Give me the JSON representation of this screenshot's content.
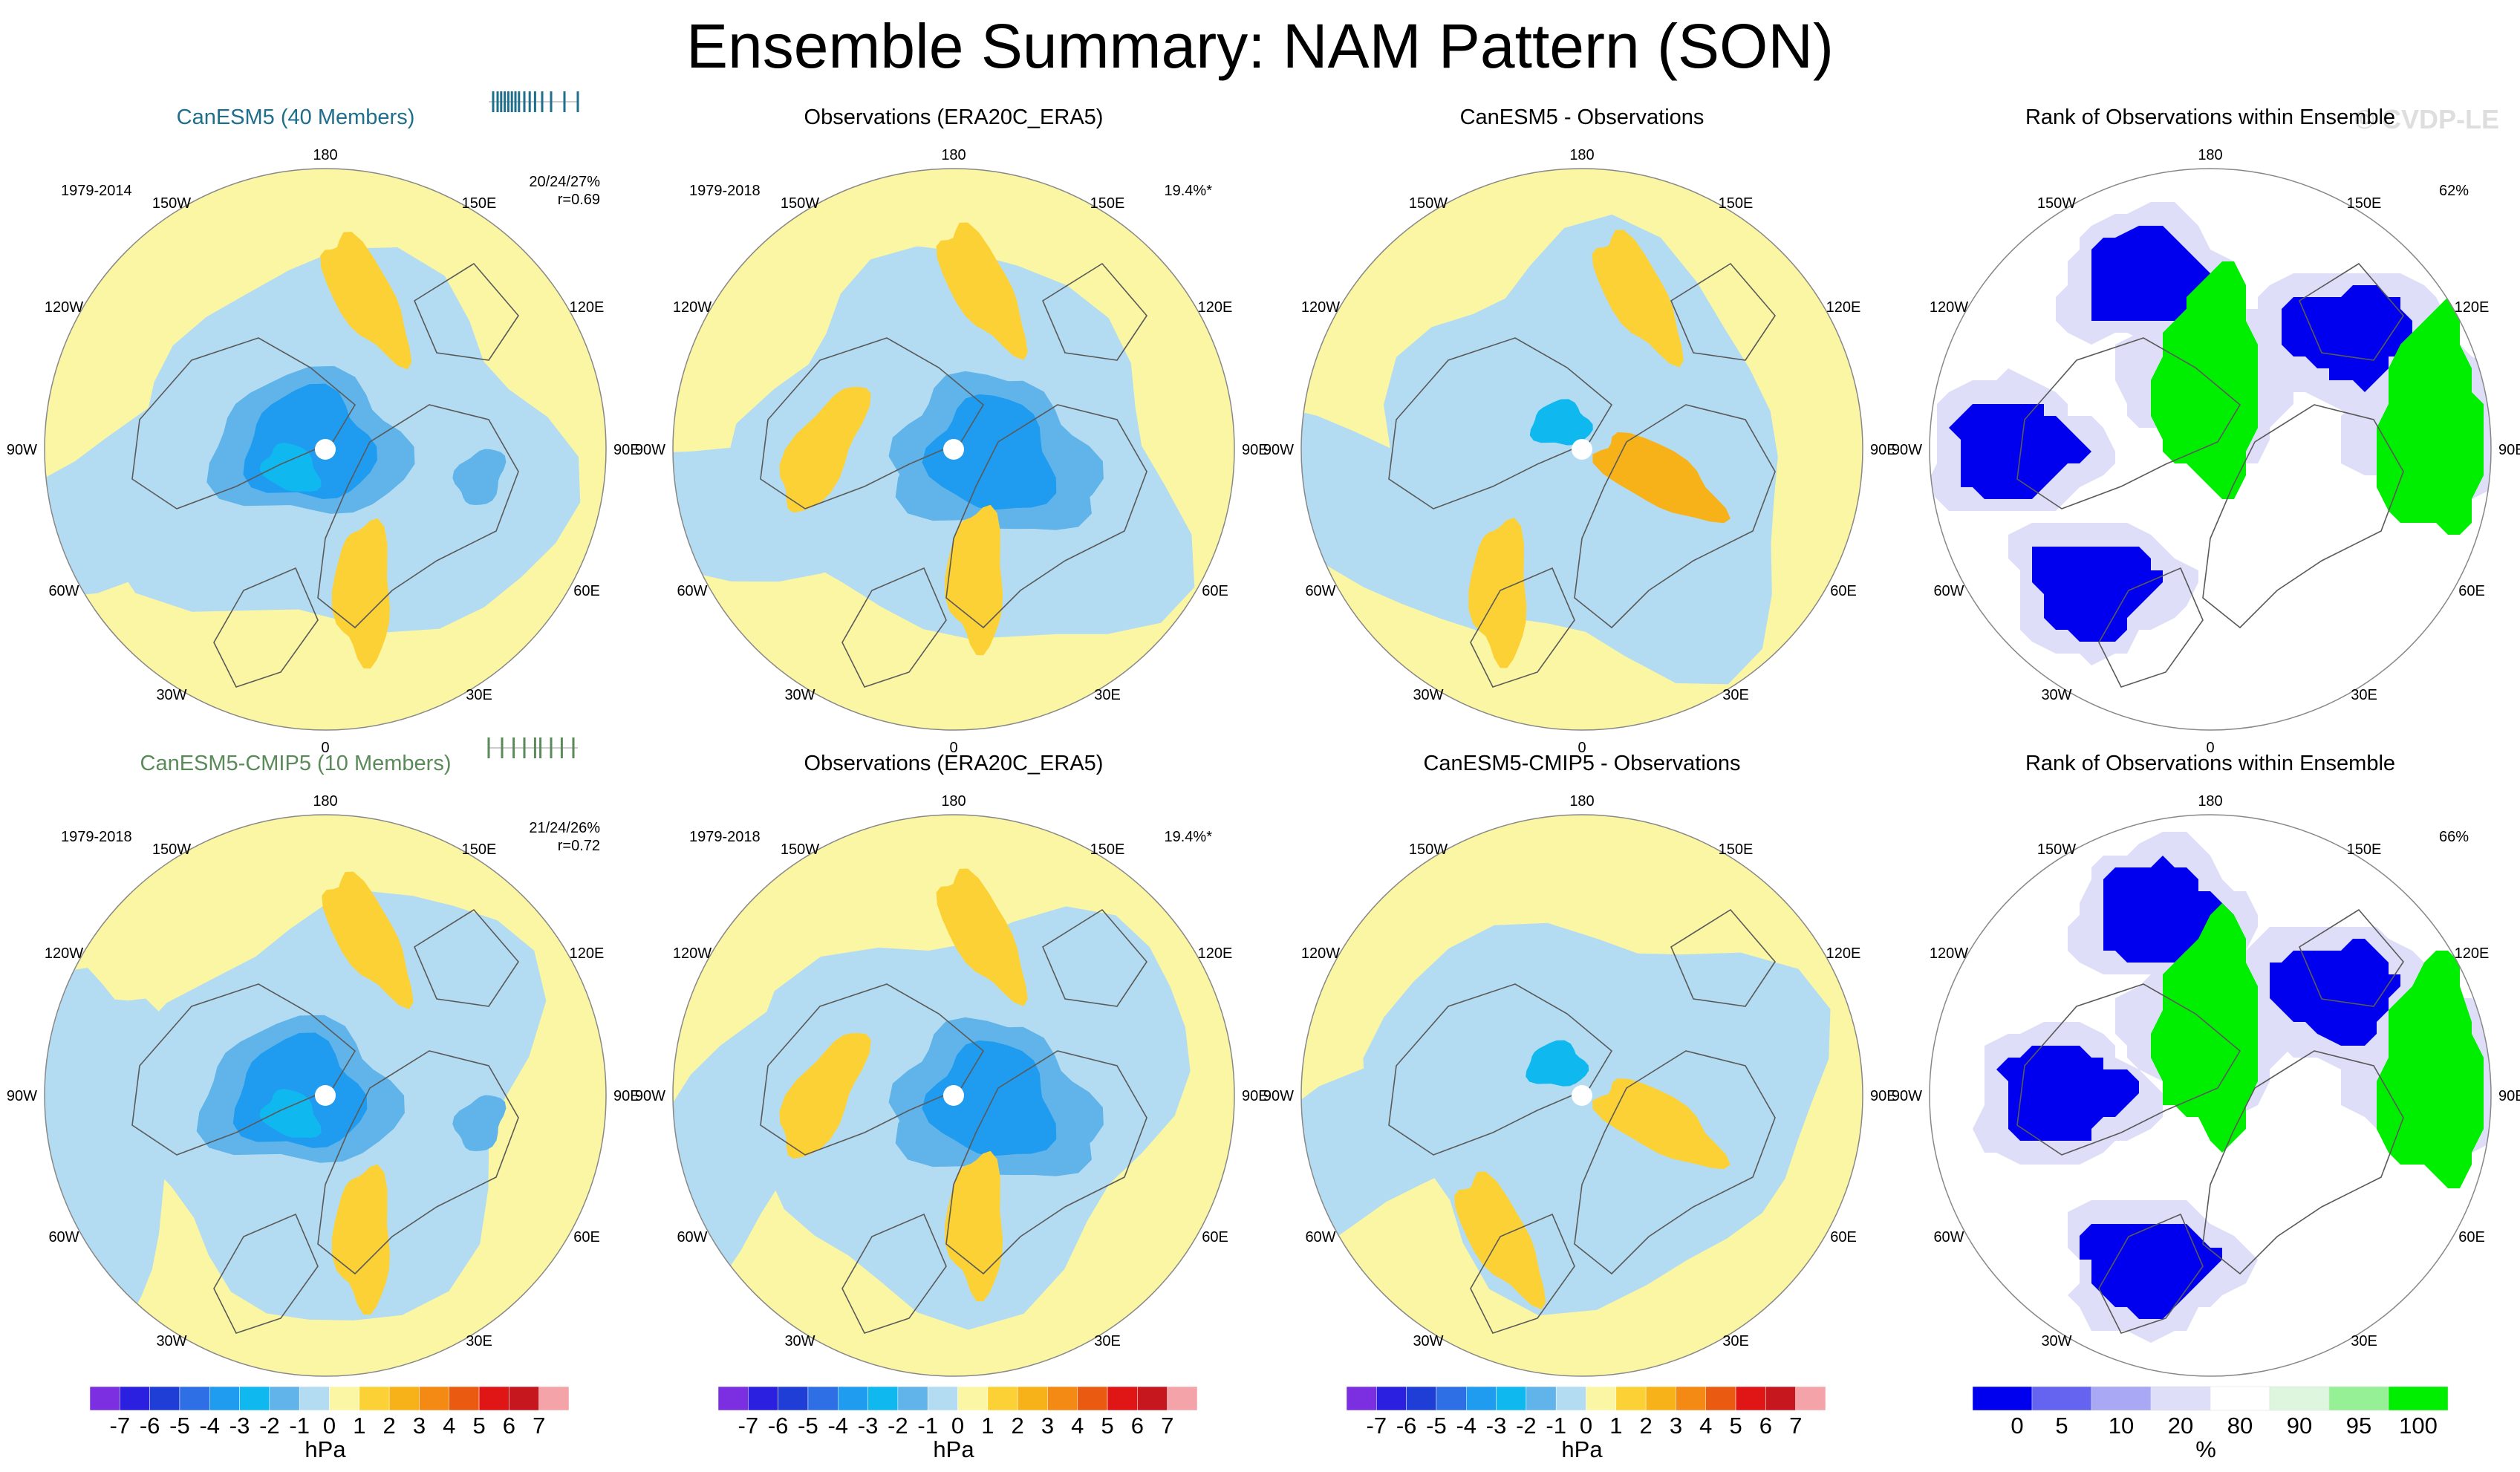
{
  "page": {
    "title": "Ensemble Summary: NAM Pattern (SON)",
    "watermark": "© CVDP-LE"
  },
  "colors": {
    "model_title_top": "#1f6e8c",
    "model_title_bottom": "#5a8a5a",
    "neg_pale": "#b3dcf2",
    "pos_pale": "#fbf6a3",
    "land_line": "#555555"
  },
  "chart_data": [
    {
      "type": "polar_stereographic_contour",
      "title": "CanESM5 (40 Members)",
      "title_color": "#1f6e8c",
      "period": "1979-2014",
      "stat_line1": "20/24/27%",
      "stat_line2": "r=0.69",
      "member_ticks": [
        0.05,
        0.1,
        0.14,
        0.18,
        0.22,
        0.26,
        0.3,
        0.34,
        0.4,
        0.46,
        0.52,
        0.6,
        0.7,
        0.85,
        1.0
      ],
      "units": "hPa",
      "features": [
        {
          "value": -3,
          "lon": 260,
          "colat": 5
        },
        {
          "value": -2,
          "lon": 300,
          "colat": 12
        },
        {
          "value": 1,
          "lon": 165,
          "colat": 48
        },
        {
          "value": 1,
          "lon": 15,
          "colat": 45
        },
        {
          "value": -1,
          "lon": 80,
          "colat": 48
        }
      ]
    },
    {
      "type": "polar_stereographic_contour",
      "title": "Observations (ERA20C_ERA5)",
      "period": "1979-2018",
      "stat_line1": "19.4%*",
      "units": "hPa",
      "features": [
        {
          "value": -4,
          "lon": 75,
          "colat": 14
        },
        {
          "value": -3,
          "lon": 80,
          "colat": 12
        },
        {
          "value": 1,
          "lon": 170,
          "colat": 50
        },
        {
          "value": 1,
          "lon": 10,
          "colat": 40
        },
        {
          "value": 1,
          "lon": 270,
          "colat": 40
        }
      ]
    },
    {
      "type": "polar_stereographic_contour",
      "title": "CanESM5 - Observations",
      "period": "",
      "units": "hPa",
      "features": [
        {
          "value": -2,
          "lon": 220,
          "colat": 10
        },
        {
          "value": 2,
          "lon": 70,
          "colat": 25
        },
        {
          "value": 1,
          "lon": 160,
          "colat": 50
        },
        {
          "value": 1,
          "lon": 330,
          "colat": 50
        }
      ]
    },
    {
      "type": "rank_map",
      "title": "Rank of Observations within Ensemble",
      "period": "",
      "stat_line1": "62%",
      "units": "%",
      "features": [
        {
          "category": "0",
          "lon": 200,
          "colat": 55
        },
        {
          "category": "0",
          "lon": 270,
          "colat": 60
        },
        {
          "category": "0",
          "lon": 320,
          "colat": 55
        },
        {
          "category": "0",
          "lon": 130,
          "colat": 55
        },
        {
          "category": "100",
          "lon": 180,
          "colat": 20
        },
        {
          "category": "100",
          "lon": 95,
          "colat": 68
        }
      ]
    },
    {
      "type": "polar_stereographic_contour",
      "title": "CanESM5-CMIP5 (10 Members)",
      "title_color": "#5a8a5a",
      "period": "1979-2018",
      "stat_line1": "21/24/26%",
      "stat_line2": "r=0.72",
      "member_ticks": [
        0.0,
        0.15,
        0.28,
        0.4,
        0.52,
        0.58,
        0.7,
        0.82,
        0.95
      ],
      "units": "hPa",
      "features": [
        {
          "value": -3,
          "lon": 270,
          "colat": 8
        },
        {
          "value": -2,
          "lon": 300,
          "colat": 12
        },
        {
          "value": 1,
          "lon": 165,
          "colat": 50
        },
        {
          "value": 1,
          "lon": 15,
          "colat": 45
        },
        {
          "value": -1,
          "lon": 80,
          "colat": 48
        }
      ]
    },
    {
      "type": "polar_stereographic_contour",
      "title": "Observations (ERA20C_ERA5)",
      "period": "1979-2018",
      "stat_line1": "19.4%*",
      "units": "hPa",
      "features": [
        {
          "value": -4,
          "lon": 75,
          "colat": 14
        },
        {
          "value": -3,
          "lon": 80,
          "colat": 12
        },
        {
          "value": 1,
          "lon": 170,
          "colat": 50
        },
        {
          "value": 1,
          "lon": 10,
          "colat": 40
        },
        {
          "value": 1,
          "lon": 270,
          "colat": 40
        }
      ]
    },
    {
      "type": "polar_stereographic_contour",
      "title": "CanESM5-CMIP5 - Observations",
      "period": "",
      "units": "hPa",
      "features": [
        {
          "value": -2,
          "lon": 220,
          "colat": 12
        },
        {
          "value": 1,
          "lon": 70,
          "colat": 25
        },
        {
          "value": 1,
          "lon": 330,
          "colat": 50
        }
      ]
    },
    {
      "type": "rank_map",
      "title": "Rank of Observations within Ensemble",
      "period": "",
      "stat_line1": "66%",
      "units": "%",
      "features": [
        {
          "category": "0",
          "lon": 195,
          "colat": 58
        },
        {
          "category": "0",
          "lon": 270,
          "colat": 45
        },
        {
          "category": "0",
          "lon": 340,
          "colat": 55
        },
        {
          "category": "0",
          "lon": 130,
          "colat": 50
        },
        {
          "category": "100",
          "lon": 180,
          "colat": 20
        },
        {
          "category": "100",
          "lon": 95,
          "colat": 68
        }
      ]
    }
  ],
  "map_labels": {
    "top": "180",
    "bottom": "0",
    "left": "90W",
    "right": "90E",
    "ul_outer": "150W",
    "ul_inner": "120W",
    "ur_outer": "150E",
    "ur_inner": "120E",
    "ll_outer": "30W",
    "ll_inner": "60W",
    "lr_outer": "30E",
    "lr_inner": "60E"
  },
  "colorbars": [
    {
      "type": "hPa",
      "unit": "hPa",
      "ticks": [
        "-7",
        "-6",
        "-5",
        "-4",
        "-3",
        "-2",
        "-1",
        "0",
        "1",
        "2",
        "3",
        "4",
        "5",
        "6",
        "7"
      ],
      "colors": [
        "#7b2fe0",
        "#2b1fe0",
        "#1f3ed6",
        "#2f6fe6",
        "#1f9bef",
        "#10b8f0",
        "#60b4ea",
        "#b3dcf2",
        "#fbf6a3",
        "#fbd135",
        "#f7b21a",
        "#f48a14",
        "#ea5a10",
        "#e01515",
        "#c6171e",
        "#f4a3a8"
      ]
    },
    {
      "type": "hPa",
      "unit": "hPa",
      "ticks": [
        "-7",
        "-6",
        "-5",
        "-4",
        "-3",
        "-2",
        "-1",
        "0",
        "1",
        "2",
        "3",
        "4",
        "5",
        "6",
        "7"
      ],
      "colors": [
        "#7b2fe0",
        "#2b1fe0",
        "#1f3ed6",
        "#2f6fe6",
        "#1f9bef",
        "#10b8f0",
        "#60b4ea",
        "#b3dcf2",
        "#fbf6a3",
        "#fbd135",
        "#f7b21a",
        "#f48a14",
        "#ea5a10",
        "#e01515",
        "#c6171e",
        "#f4a3a8"
      ]
    },
    {
      "type": "hPa",
      "unit": "hPa",
      "ticks": [
        "-7",
        "-6",
        "-5",
        "-4",
        "-3",
        "-2",
        "-1",
        "0",
        "1",
        "2",
        "3",
        "4",
        "5",
        "6",
        "7"
      ],
      "colors": [
        "#7b2fe0",
        "#2b1fe0",
        "#1f3ed6",
        "#2f6fe6",
        "#1f9bef",
        "#10b8f0",
        "#60b4ea",
        "#b3dcf2",
        "#fbf6a3",
        "#fbd135",
        "#f7b21a",
        "#f48a14",
        "#ea5a10",
        "#e01515",
        "#c6171e",
        "#f4a3a8"
      ]
    },
    {
      "type": "rank",
      "unit": "%",
      "ticks": [
        "0",
        "5",
        "10",
        "20",
        "80",
        "90",
        "95",
        "100"
      ],
      "colors": [
        "#0000ee",
        "#6464f0",
        "#a8a8f4",
        "#dedef8",
        "#ffffff",
        "#ddf6dd",
        "#96f096",
        "#00ee00"
      ]
    }
  ]
}
